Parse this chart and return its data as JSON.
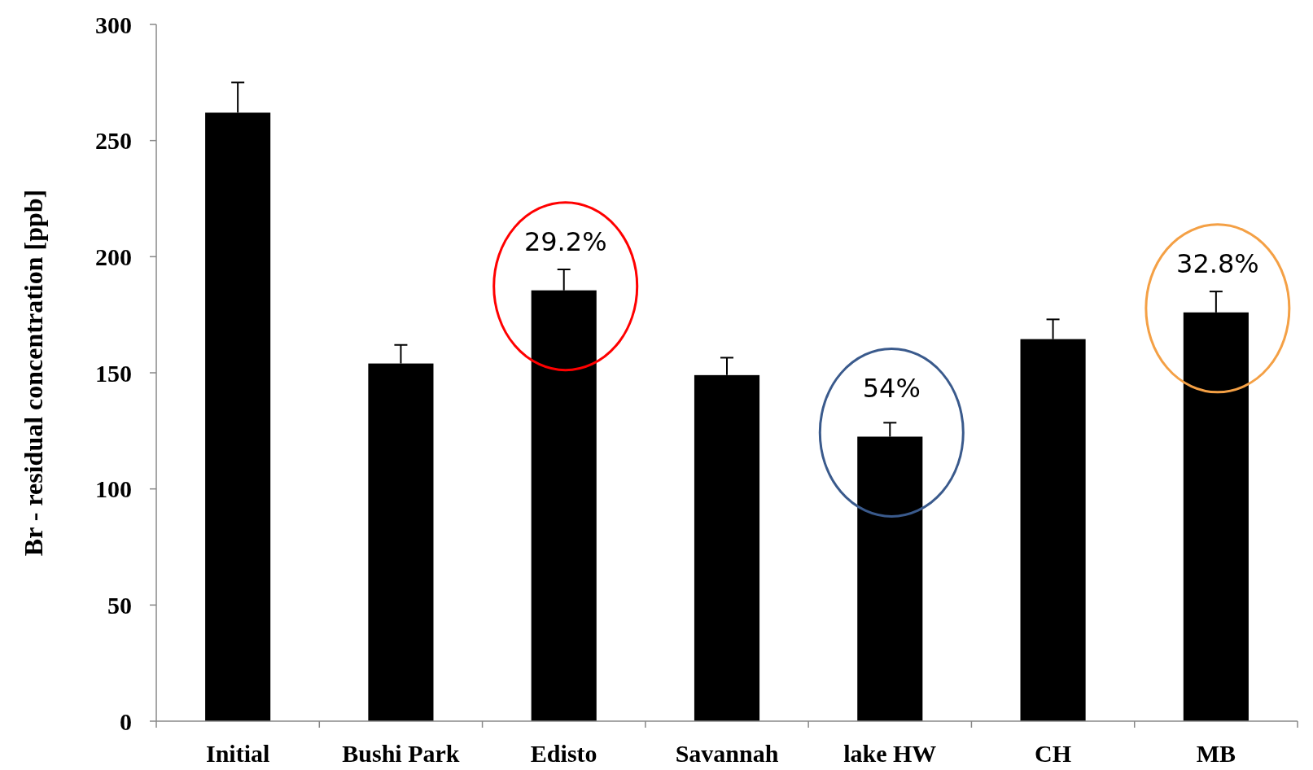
{
  "chart_data": {
    "type": "bar",
    "ylabel": "Br - residual concentration [ppb]",
    "categories": [
      "Initial",
      "Bushi Park",
      "Edisto",
      "Savannah",
      "lake HW",
      "CH",
      "MB"
    ],
    "values": [
      262,
      154,
      185.5,
      149,
      122.5,
      164.5,
      176
    ],
    "errors": [
      [
        262,
        275
      ],
      [
        154,
        162
      ],
      [
        185.5,
        194.5
      ],
      [
        149,
        156.5
      ],
      [
        122.5,
        128.5
      ],
      [
        164.5,
        173
      ],
      [
        176,
        185
      ]
    ],
    "color": "#000000",
    "ylim": [
      0,
      300
    ],
    "yticks": [
      0,
      50,
      100,
      150,
      200,
      250,
      300
    ],
    "grid": false,
    "annotations": [
      {
        "text": "29.2%",
        "x": "Edisto",
        "y": 185.5
      },
      {
        "text": "54%",
        "x": "lake HW",
        "y": 122.5
      },
      {
        "text": "32.8%",
        "x": "MB",
        "y": 176
      }
    ]
  }
}
